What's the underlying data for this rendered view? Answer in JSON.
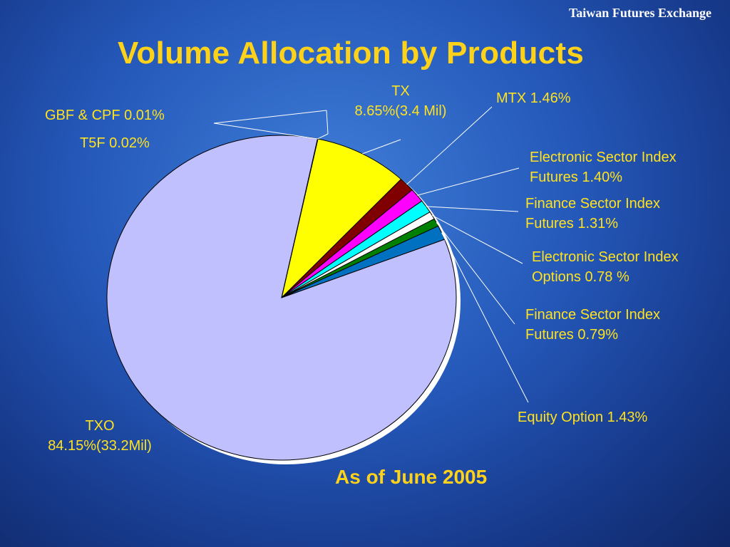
{
  "header": {
    "brand": "Taiwan Futures Exchange",
    "title": "Volume Allocation by Products"
  },
  "footer": {
    "note": "As of June 2005"
  },
  "chart_data": {
    "type": "pie",
    "title": "Volume Allocation by Products",
    "slices": [
      {
        "name": "TX",
        "value": 8.65,
        "label": [
          "TX",
          "8.65%(3.4 Mil)"
        ],
        "color": "#ffff00"
      },
      {
        "name": "MTX",
        "value": 1.46,
        "label": [
          "MTX 1.46%"
        ],
        "color": "#800000"
      },
      {
        "name": "Electronic Sector Index Futures",
        "value": 1.4,
        "label": [
          "Electronic Sector Index",
          "Futures 1.40%"
        ],
        "color": "#ff00ff"
      },
      {
        "name": "Finance Sector Index Futures",
        "value": 1.31,
        "label": [
          "Finance Sector Index",
          "Futures 1.31%"
        ],
        "color": "#00ffff"
      },
      {
        "name": "Electronic Sector Index Options",
        "value": 0.78,
        "label": [
          "Electronic Sector Index",
          "Options 0.78 %"
        ],
        "color": "#ffffff"
      },
      {
        "name": "Finance Sector Index Futures",
        "value": 0.79,
        "label": [
          "Finance Sector Index",
          "Futures 0.79%"
        ],
        "color": "#008000"
      },
      {
        "name": "Equity Option",
        "value": 1.43,
        "label": [
          "Equity Option 1.43%"
        ],
        "color": "#0070c0"
      },
      {
        "name": "TXO",
        "value": 84.15,
        "label": [
          "TXO",
          "84.15%(33.2Mil)"
        ],
        "color": "#c0c0ff"
      },
      {
        "name": "T5F",
        "value": 0.02,
        "label": [
          "T5F 0.02%"
        ],
        "color": "#ffffff"
      },
      {
        "name": "GBF & CPF",
        "value": 0.01,
        "label": [
          "GBF & CPF 0.01%"
        ],
        "color": "#ffffff"
      }
    ],
    "legend": "none"
  }
}
